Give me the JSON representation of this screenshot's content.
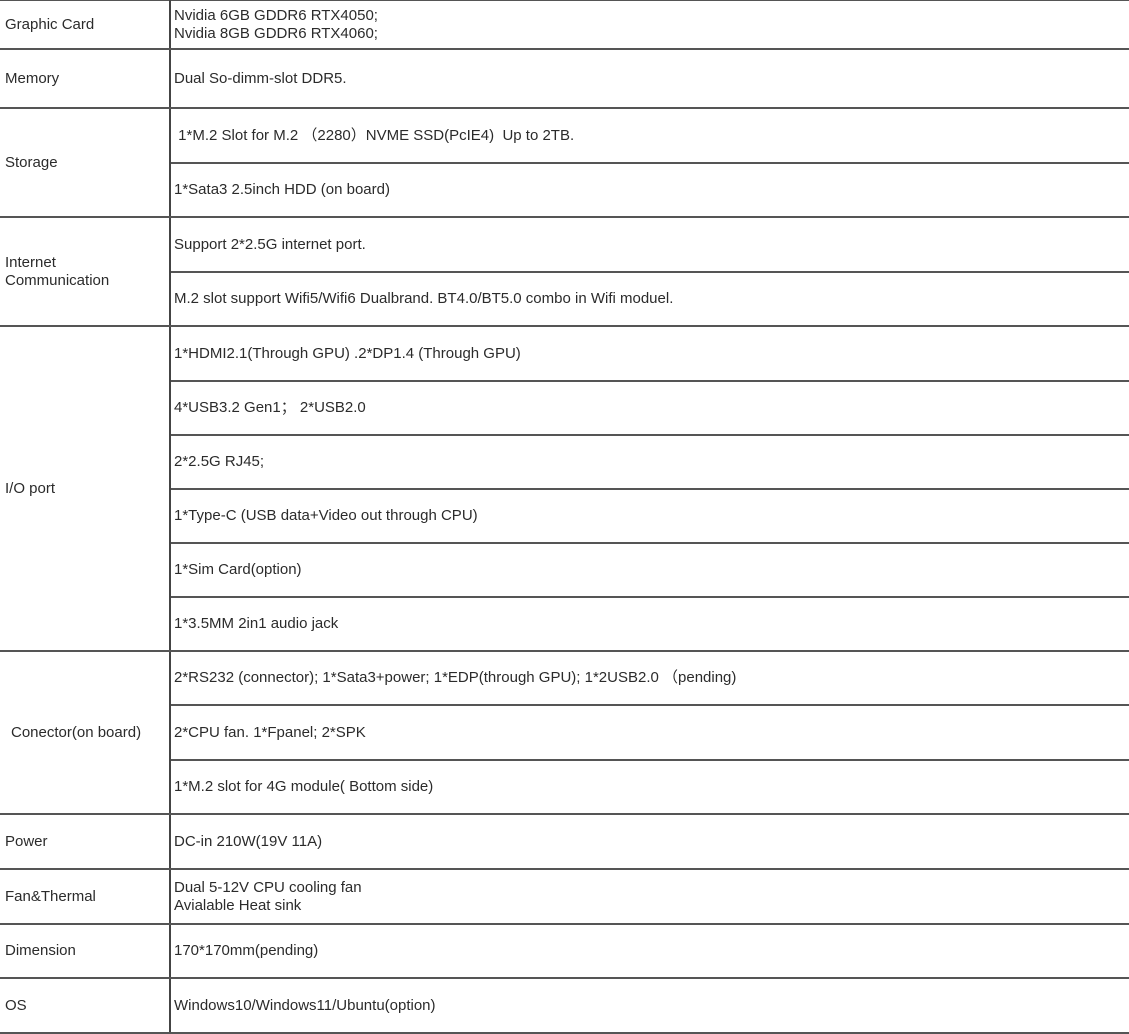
{
  "rows": [
    {
      "label": "Graphic Card",
      "values": [
        "Nvidia 6GB GDDR6 RTX4050;\nNvidia 8GB GDDR6 RTX4060;"
      ]
    },
    {
      "label": "Memory",
      "values": [
        "Dual So-dimm-slot DDR5."
      ]
    },
    {
      "label": "Storage",
      "values": [
        " 1*M.2 Slot for M.2 （2280）NVME SSD(PcIE4)  Up to 2TB.",
        "1*Sata3 2.5inch HDD (on board)"
      ]
    },
    {
      "label": "Internet\nCommunication",
      "values": [
        "Support 2*2.5G internet port.",
        "M.2 slot support Wifi5/Wifi6 Dualbrand. BT4.0/BT5.0 combo in Wifi moduel."
      ]
    },
    {
      "label": "I/O port",
      "values": [
        "1*HDMI2.1(Through GPU) .2*DP1.4 (Through GPU)",
        "4*USB3.2 Gen1； 2*USB2.0",
        "2*2.5G RJ45;",
        "1*Type-C (USB data+Video out through CPU)",
        "1*Sim Card(option)",
        "1*3.5MM 2in1 audio jack"
      ]
    },
    {
      "label": "Conector(on board)",
      "values": [
        "2*RS232 (connector); 1*Sata3+power; 1*EDP(through GPU); 1*2USB2.0 （pending)",
        "2*CPU fan.  1*Fpanel; 2*SPK",
        "1*M.2 slot for 4G module( Bottom side)"
      ]
    },
    {
      "label": "Power",
      "values": [
        "DC-in 210W(19V 11A)"
      ]
    },
    {
      "label": "Fan&Thermal",
      "values": [
        "Dual 5-12V CPU cooling fan\nAvialable Heat sink"
      ]
    },
    {
      "label": "Dimension",
      "values": [
        "170*170mm(pending)"
      ]
    },
    {
      "label": "OS",
      "values": [
        "Windows10/Windows11/Ubuntu(option)"
      ]
    }
  ]
}
